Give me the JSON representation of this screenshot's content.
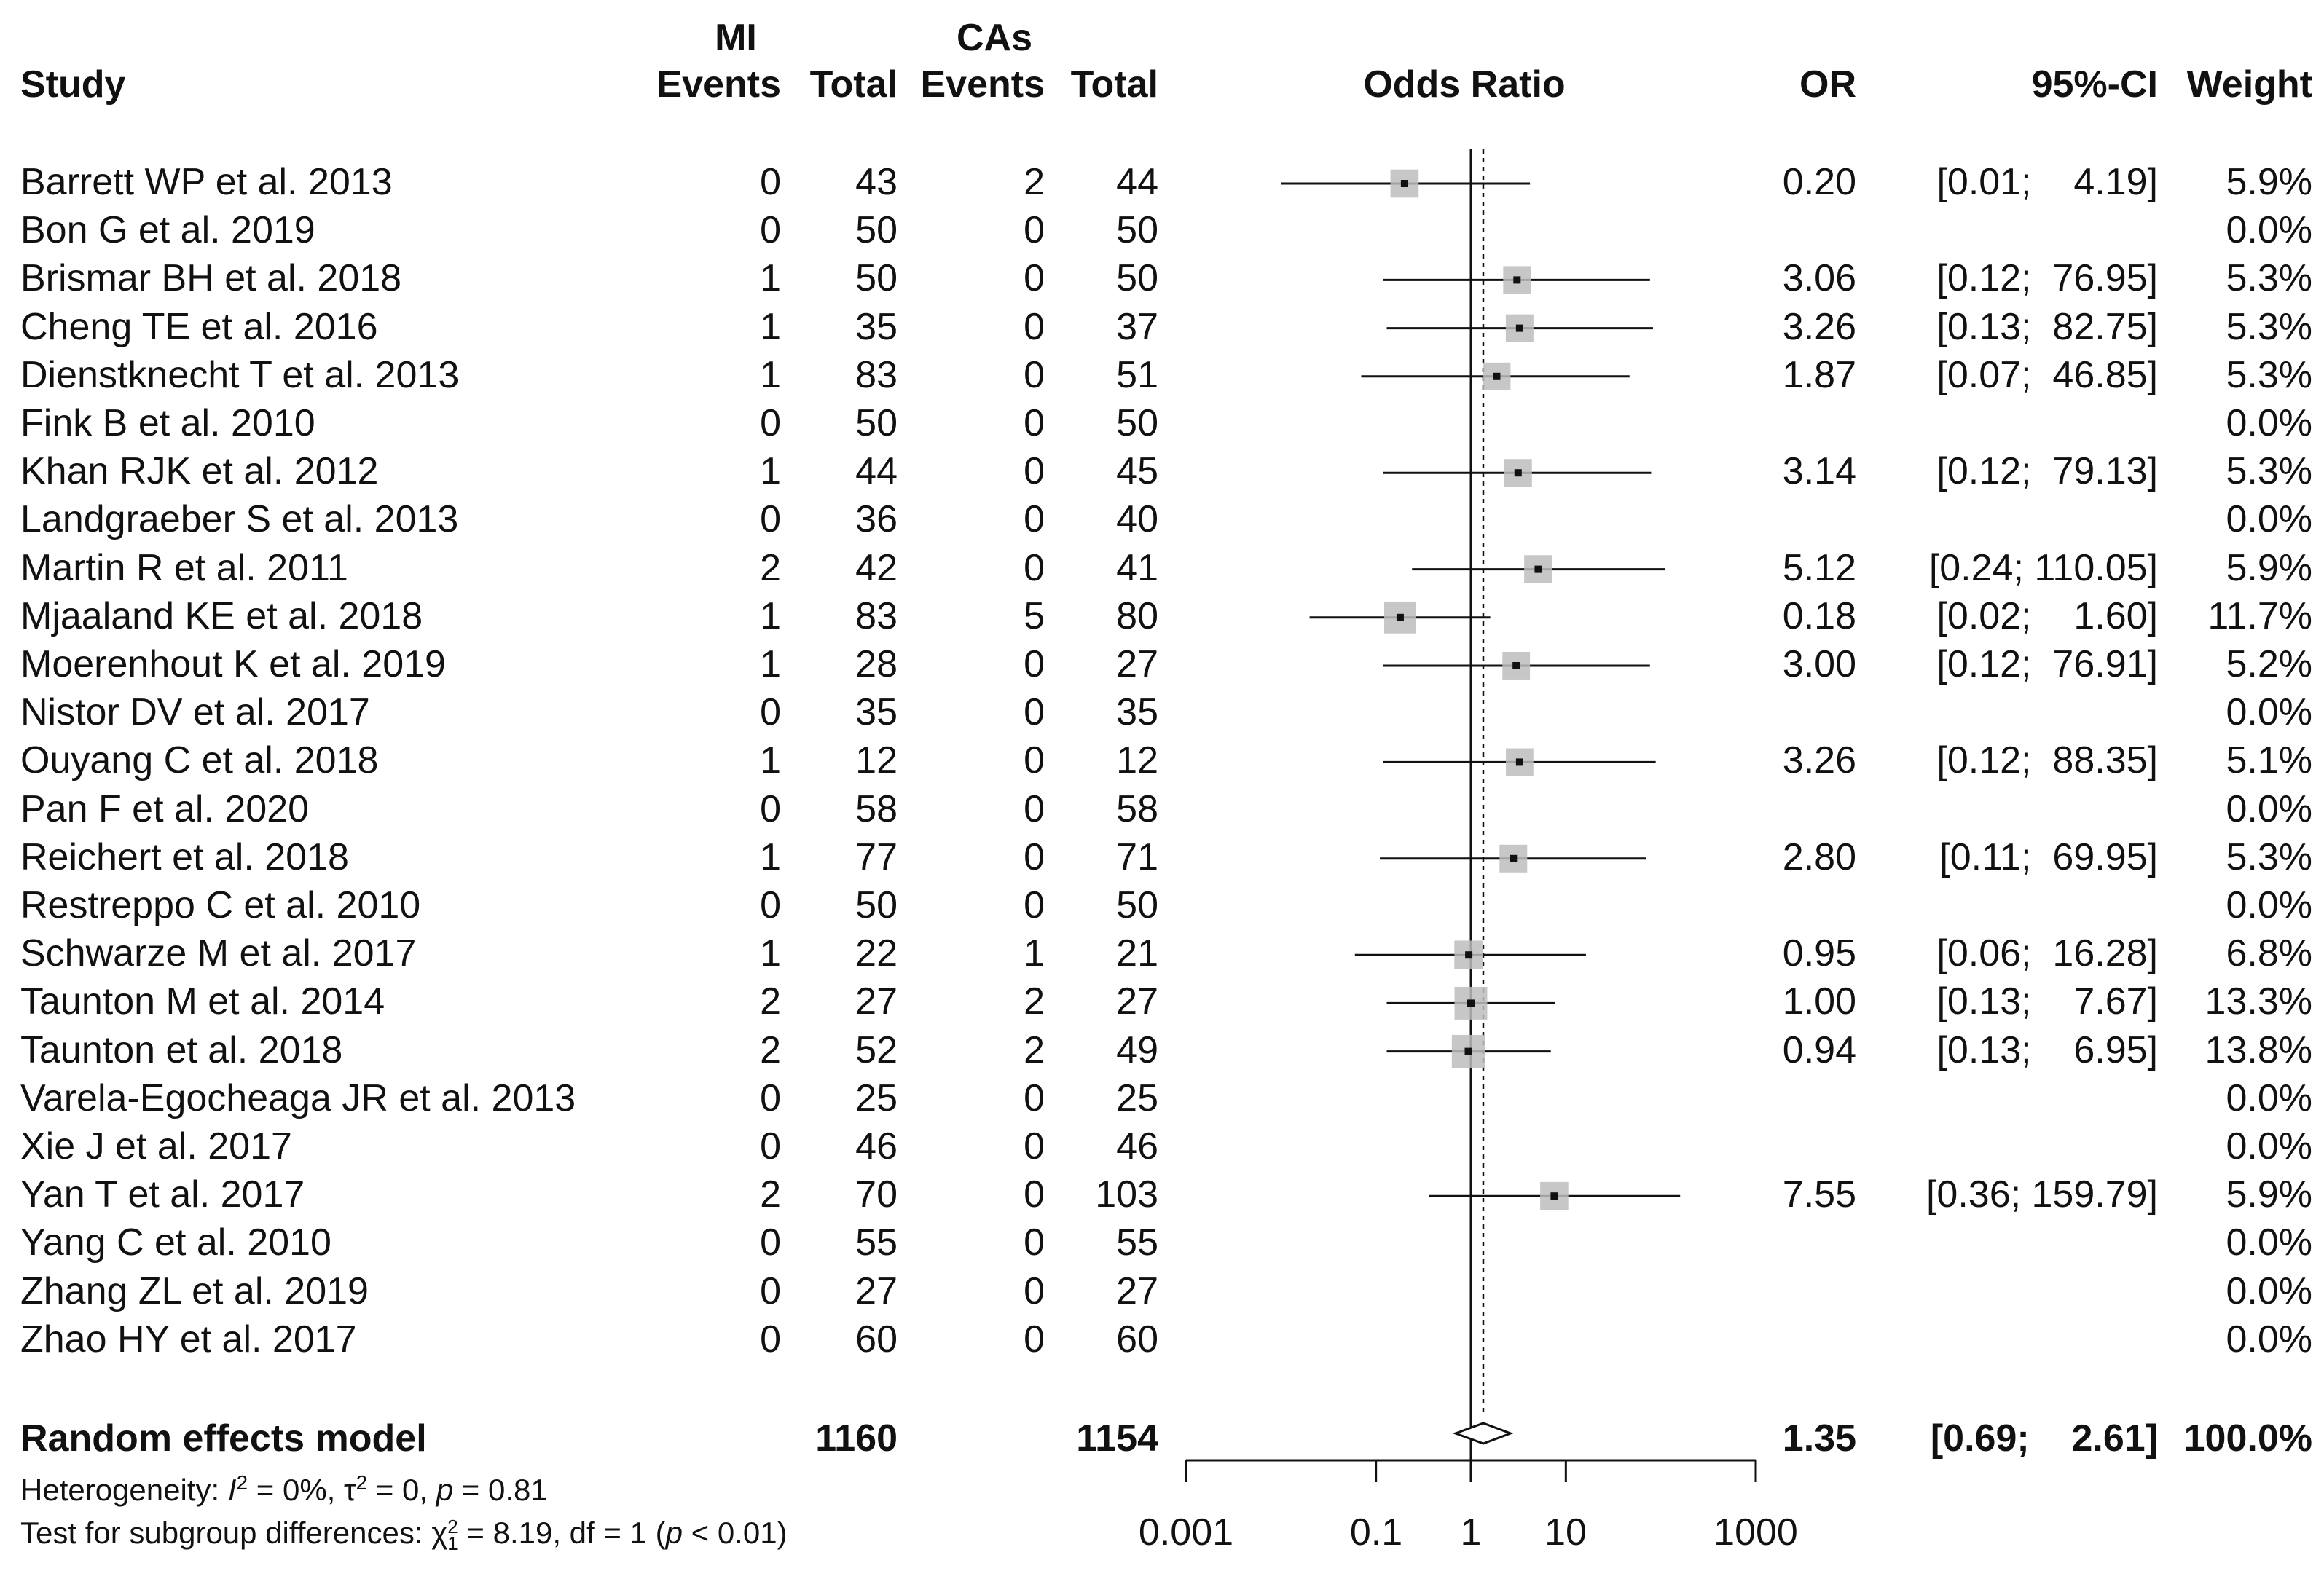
{
  "chart_data": {
    "type": "forest",
    "title": "",
    "group_labels": {
      "treatment": "MI",
      "control": "CAs"
    },
    "columns": {
      "study": "Study",
      "events_t": "Events",
      "total_t": "Total",
      "events_c": "Events",
      "total_c": "Total",
      "plot": "Odds Ratio",
      "or": "OR",
      "ci": "95%-CI",
      "weight": "Weight"
    },
    "studies": [
      {
        "study": "Barrett WP et al. 2013",
        "e_t": "0",
        "n_t": "43",
        "e_c": "2",
        "n_c": "44",
        "or": 0.2,
        "lo": 0.01,
        "hi": 4.19,
        "or_text": "0.20",
        "ci_text": "[0.01;    4.19]",
        "weight": 5.9,
        "weight_text": "5.9%"
      },
      {
        "study": "Bon G et al. 2019",
        "e_t": "0",
        "n_t": "50",
        "e_c": "0",
        "n_c": "50",
        "or": null,
        "lo": null,
        "hi": null,
        "or_text": "",
        "ci_text": "",
        "weight": 0.0,
        "weight_text": "0.0%"
      },
      {
        "study": "Brismar BH et al. 2018",
        "e_t": "1",
        "n_t": "50",
        "e_c": "0",
        "n_c": "50",
        "or": 3.06,
        "lo": 0.12,
        "hi": 76.95,
        "or_text": "3.06",
        "ci_text": "[0.12;  76.95]",
        "weight": 5.3,
        "weight_text": "5.3%"
      },
      {
        "study": "Cheng TE et al. 2016",
        "e_t": "1",
        "n_t": "35",
        "e_c": "0",
        "n_c": "37",
        "or": 3.26,
        "lo": 0.13,
        "hi": 82.75,
        "or_text": "3.26",
        "ci_text": "[0.13;  82.75]",
        "weight": 5.3,
        "weight_text": "5.3%"
      },
      {
        "study": "Dienstknecht T et al. 2013",
        "e_t": "1",
        "n_t": "83",
        "e_c": "0",
        "n_c": "51",
        "or": 1.87,
        "lo": 0.07,
        "hi": 46.85,
        "or_text": "1.87",
        "ci_text": "[0.07;  46.85]",
        "weight": 5.3,
        "weight_text": "5.3%"
      },
      {
        "study": "Fink B et al.  2010",
        "e_t": "0",
        "n_t": "50",
        "e_c": "0",
        "n_c": "50",
        "or": null,
        "lo": null,
        "hi": null,
        "or_text": "",
        "ci_text": "",
        "weight": 0.0,
        "weight_text": "0.0%"
      },
      {
        "study": "Khan RJK et al. 2012",
        "e_t": "1",
        "n_t": "44",
        "e_c": "0",
        "n_c": "45",
        "or": 3.14,
        "lo": 0.12,
        "hi": 79.13,
        "or_text": "3.14",
        "ci_text": "[0.12;  79.13]",
        "weight": 5.3,
        "weight_text": "5.3%"
      },
      {
        "study": "Landgraeber S et al.  2013",
        "e_t": "0",
        "n_t": "36",
        "e_c": "0",
        "n_c": "40",
        "or": null,
        "lo": null,
        "hi": null,
        "or_text": "",
        "ci_text": "",
        "weight": 0.0,
        "weight_text": "0.0%"
      },
      {
        "study": "Martin R et al. 2011",
        "e_t": "2",
        "n_t": "42",
        "e_c": "0",
        "n_c": "41",
        "or": 5.12,
        "lo": 0.24,
        "hi": 110.05,
        "or_text": "5.12",
        "ci_text": "[0.24; 110.05]",
        "weight": 5.9,
        "weight_text": "5.9%"
      },
      {
        "study": "Mjaaland KE et al. 2018",
        "e_t": "1",
        "n_t": "83",
        "e_c": "5",
        "n_c": "80",
        "or": 0.18,
        "lo": 0.02,
        "hi": 1.6,
        "or_text": "0.18",
        "ci_text": "[0.02;    1.60]",
        "weight": 11.7,
        "weight_text": "11.7%"
      },
      {
        "study": "Moerenhout K et al.  2019",
        "e_t": "1",
        "n_t": "28",
        "e_c": "0",
        "n_c": "27",
        "or": 3.0,
        "lo": 0.12,
        "hi": 76.91,
        "or_text": "3.00",
        "ci_text": "[0.12;  76.91]",
        "weight": 5.2,
        "weight_text": "5.2%"
      },
      {
        "study": "Nistor DV et al. 2017",
        "e_t": "0",
        "n_t": "35",
        "e_c": "0",
        "n_c": "35",
        "or": null,
        "lo": null,
        "hi": null,
        "or_text": "",
        "ci_text": "",
        "weight": 0.0,
        "weight_text": "0.0%"
      },
      {
        "study": "Ouyang C et al. 2018",
        "e_t": "1",
        "n_t": "12",
        "e_c": "0",
        "n_c": "12",
        "or": 3.26,
        "lo": 0.12,
        "hi": 88.35,
        "or_text": "3.26",
        "ci_text": "[0.12;  88.35]",
        "weight": 5.1,
        "weight_text": "5.1%"
      },
      {
        "study": "Pan F et al. 2020",
        "e_t": "0",
        "n_t": "58",
        "e_c": "0",
        "n_c": "58",
        "or": null,
        "lo": null,
        "hi": null,
        "or_text": "",
        "ci_text": "",
        "weight": 0.0,
        "weight_text": "0.0%"
      },
      {
        "study": "Reichert et al. 2018",
        "e_t": "1",
        "n_t": "77",
        "e_c": "0",
        "n_c": "71",
        "or": 2.8,
        "lo": 0.11,
        "hi": 69.95,
        "or_text": "2.80",
        "ci_text": "[0.11;  69.95]",
        "weight": 5.3,
        "weight_text": "5.3%"
      },
      {
        "study": "Restreppo C et al. 2010",
        "e_t": "0",
        "n_t": "50",
        "e_c": "0",
        "n_c": "50",
        "or": null,
        "lo": null,
        "hi": null,
        "or_text": "",
        "ci_text": "",
        "weight": 0.0,
        "weight_text": "0.0%"
      },
      {
        "study": "Schwarze M et al. 2017",
        "e_t": "1",
        "n_t": "22",
        "e_c": "1",
        "n_c": "21",
        "or": 0.95,
        "lo": 0.06,
        "hi": 16.28,
        "or_text": "0.95",
        "ci_text": "[0.06;  16.28]",
        "weight": 6.8,
        "weight_text": "6.8%"
      },
      {
        "study": "Taunton M et al. 2014",
        "e_t": "2",
        "n_t": "27",
        "e_c": "2",
        "n_c": "27",
        "or": 1.0,
        "lo": 0.13,
        "hi": 7.67,
        "or_text": "1.00",
        "ci_text": "[0.13;    7.67]",
        "weight": 13.3,
        "weight_text": "13.3%"
      },
      {
        "study": "Taunton et al. 2018",
        "e_t": "2",
        "n_t": "52",
        "e_c": "2",
        "n_c": "49",
        "or": 0.94,
        "lo": 0.13,
        "hi": 6.95,
        "or_text": "0.94",
        "ci_text": "[0.13;    6.95]",
        "weight": 13.8,
        "weight_text": "13.8%"
      },
      {
        "study": "Varela-Egocheaga JR et al.  2013",
        "e_t": "0",
        "n_t": "25",
        "e_c": "0",
        "n_c": "25",
        "or": null,
        "lo": null,
        "hi": null,
        "or_text": "",
        "ci_text": "",
        "weight": 0.0,
        "weight_text": "0.0%"
      },
      {
        "study": "Xie J et al.  2017",
        "e_t": "0",
        "n_t": "46",
        "e_c": "0",
        "n_c": "46",
        "or": null,
        "lo": null,
        "hi": null,
        "or_text": "",
        "ci_text": "",
        "weight": 0.0,
        "weight_text": "0.0%"
      },
      {
        "study": "Yan T et al. 2017",
        "e_t": "2",
        "n_t": "70",
        "e_c": "0",
        "n_c": "103",
        "or": 7.55,
        "lo": 0.36,
        "hi": 159.79,
        "or_text": "7.55",
        "ci_text": "[0.36; 159.79]",
        "weight": 5.9,
        "weight_text": "5.9%"
      },
      {
        "study": "Yang C et al. 2010",
        "e_t": "0",
        "n_t": "55",
        "e_c": "0",
        "n_c": "55",
        "or": null,
        "lo": null,
        "hi": null,
        "or_text": "",
        "ci_text": "",
        "weight": 0.0,
        "weight_text": "0.0%"
      },
      {
        "study": "Zhang ZL et al. 2019",
        "e_t": "0",
        "n_t": "27",
        "e_c": "0",
        "n_c": "27",
        "or": null,
        "lo": null,
        "hi": null,
        "or_text": "",
        "ci_text": "",
        "weight": 0.0,
        "weight_text": "0.0%"
      },
      {
        "study": "Zhao HY et al. 2017",
        "e_t": "0",
        "n_t": "60",
        "e_c": "0",
        "n_c": "60",
        "or": null,
        "lo": null,
        "hi": null,
        "or_text": "",
        "ci_text": "",
        "weight": 0.0,
        "weight_text": "0.0%"
      }
    ],
    "summary": {
      "label": "Random effects model",
      "total_t": "1160",
      "total_c": "1154",
      "or": 1.35,
      "lo": 0.69,
      "hi": 2.61,
      "or_text": "1.35",
      "ci_text": "[0.69;    2.61]",
      "weight_text": "100.0%"
    },
    "footnotes": {
      "heterogeneity_prefix": "Heterogeneity: ",
      "i2_symbol": "I",
      "i2_sup": "2",
      "i2_value": " = 0%, ",
      "tau_symbol": "τ",
      "tau_sup": "2",
      "tau_value": " = 0, ",
      "p_symbol": "p",
      "p_value": " = 0.81",
      "subgroup_prefix": "Test for subgroup differences: ",
      "chi_symbol": "χ",
      "chi_sup": "2",
      "chi_sub": "1",
      "chi_value": " = 8.19, df = 1 (",
      "p2_symbol": "p",
      "p2_value": " < 0.01)"
    },
    "x_axis": {
      "scale": "log",
      "range": [
        0.001,
        1000
      ],
      "ticks": [
        0.001,
        0.1,
        1,
        10,
        1000
      ],
      "tick_labels": [
        "0.001",
        "0.1",
        "1",
        "10",
        "1000"
      ],
      "reference_line": 1
    }
  }
}
